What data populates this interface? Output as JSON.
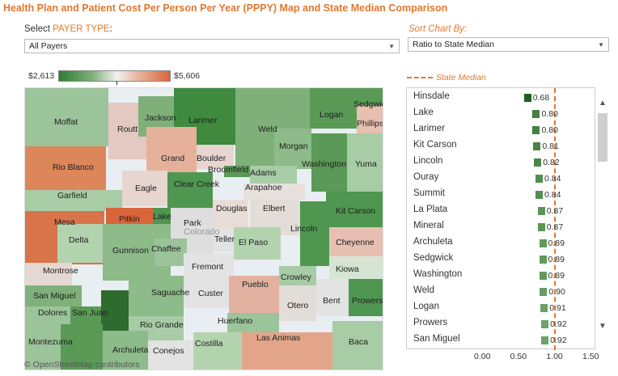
{
  "title": "Health Plan and Patient Cost Per Person Per Year (PPPY) Map and State Median Comparison",
  "payer_filter": {
    "label_prefix": "Select ",
    "label_accent": "PAYER TYPE",
    "label_suffix": ":",
    "value": "All Payers"
  },
  "sort": {
    "label": "Sort Chart By:",
    "value": "Ratio to State Median"
  },
  "map_legend": {
    "min": "$2,613",
    "max": "$5,606"
  },
  "median_legend": "State Median",
  "map": {
    "credit": "© OpenStreetMap contributors",
    "counties": [
      "Moffat",
      "Routt",
      "Jackson",
      "Larimer",
      "Weld",
      "Logan",
      "Sedgwick",
      "Phillips",
      "Morgan",
      "Washington",
      "Yuma",
      "Grand",
      "Boulder",
      "Broomfield",
      "Adams",
      "Rio Blanco",
      "Garfield",
      "Eagle",
      "Clear Creek",
      "Arapahoe",
      "Elbert",
      "Kit Carson",
      "Mesa",
      "Pitkin",
      "Lake",
      "Park",
      "Douglas",
      "Lincoln",
      "Delta",
      "Gunnison",
      "Chaffee",
      "Teller",
      "El Paso",
      "Cheyenne",
      "Montrose",
      "Fremont",
      "Kiowa",
      "Crowley",
      "San Miguel",
      "Saguache",
      "Custer",
      "Pueblo",
      "Otero",
      "Bent",
      "Prowers",
      "Dolores",
      "San Juan",
      "Rio Grande",
      "Huerfano",
      "Las Animas",
      "Baca",
      "Montezuma",
      "Archuleta",
      "Conejos",
      "Costilla",
      "Colorado"
    ]
  },
  "chart_data": {
    "type": "bar",
    "orientation": "horizontal",
    "categories": [
      "Hinsdale",
      "Lake",
      "Larimer",
      "Kit Carson",
      "Lincoln",
      "Ouray",
      "Summit",
      "La Plata",
      "Mineral",
      "Archuleta",
      "Sedgwick",
      "Washington",
      "Weld",
      "Logan",
      "Prowers",
      "San Miguel"
    ],
    "values": [
      0.68,
      0.8,
      0.8,
      0.81,
      0.82,
      0.84,
      0.84,
      0.87,
      0.87,
      0.89,
      0.89,
      0.89,
      0.9,
      0.91,
      0.92,
      0.92
    ],
    "value_labels": [
      "0.68",
      "0.80",
      "0.80",
      "0.81",
      "0.82",
      "0.84",
      "0.84",
      "0.87",
      "0.87",
      "0.89",
      "0.89",
      "0.89",
      "0.90",
      "0.91",
      "0.92",
      "0.92"
    ],
    "reference_line": {
      "label": "State Median",
      "value": 1.0,
      "color": "#e0782f"
    },
    "x_ticks": [
      "0.00",
      "0.50",
      "1.00",
      "1.50"
    ],
    "xlim": [
      0,
      1.5
    ],
    "grid": false
  },
  "colors": {
    "accent": "#e0782f",
    "low": "#2e7d32",
    "high": "#d8663a"
  }
}
